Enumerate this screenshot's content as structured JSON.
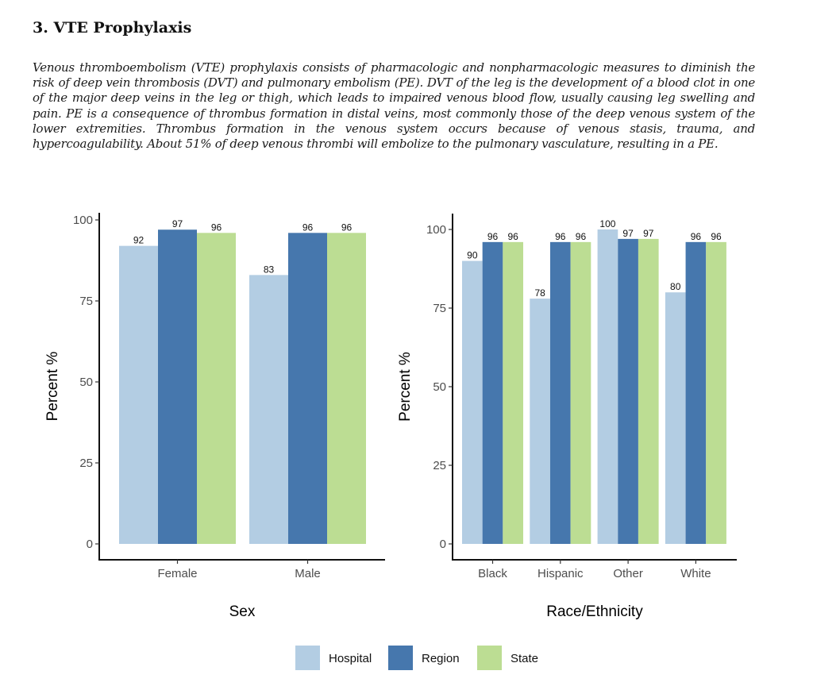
{
  "document": {
    "heading": "3.  VTE Prophylaxis",
    "paragraph": "Venous thromboembolism (VTE) prophylaxis consists of pharmacologic and nonpharmacologic measures to diminish the risk of deep vein thrombosis (DVT) and pulmonary embolism (PE). DVT of the leg is the development of a blood clot in one of the major deep veins in the leg or thigh, which leads to impaired venous blood flow, usually causing leg swelling and pain. PE is a consequence of thrombus formation in distal veins, most commonly those of the deep venous system of the lower extremities. Thrombus formation in the venous system occurs because of venous stasis, trauma, and hypercoagulability. About 51% of deep venous thrombi will embolize to the pulmonary vasculature, resulting in a PE."
  },
  "legend": {
    "items": [
      {
        "label": "Hospital",
        "color": "#b3cde3"
      },
      {
        "label": "Region",
        "color": "#4677ad"
      },
      {
        "label": "State",
        "color": "#bcdd93"
      }
    ],
    "placement": "bottom-center"
  },
  "chart_data": [
    {
      "type": "bar",
      "title": "",
      "xlabel": "Sex",
      "ylabel": "Percent %",
      "ylim": [
        0,
        100
      ],
      "yticks": [
        "0",
        "25",
        "50",
        "75",
        "100"
      ],
      "categories": [
        "Female",
        "Male"
      ],
      "series": [
        {
          "name": "Hospital",
          "values": [
            92,
            83
          ]
        },
        {
          "name": "Region",
          "values": [
            97,
            96
          ]
        },
        {
          "name": "State",
          "values": [
            96,
            96
          ]
        }
      ],
      "grid": false
    },
    {
      "type": "bar",
      "title": "",
      "xlabel": "Race/Ethnicity",
      "ylabel": "Percent %",
      "ylim": [
        0,
        100
      ],
      "yticks": [
        "0",
        "25",
        "50",
        "75",
        "100"
      ],
      "categories": [
        "Black",
        "Hispanic",
        "Other",
        "White"
      ],
      "series": [
        {
          "name": "Hospital",
          "values": [
            90,
            78,
            100,
            80
          ]
        },
        {
          "name": "Region",
          "values": [
            96,
            96,
            97,
            96
          ]
        },
        {
          "name": "State",
          "values": [
            96,
            96,
            97,
            96
          ]
        }
      ],
      "grid": false
    }
  ]
}
